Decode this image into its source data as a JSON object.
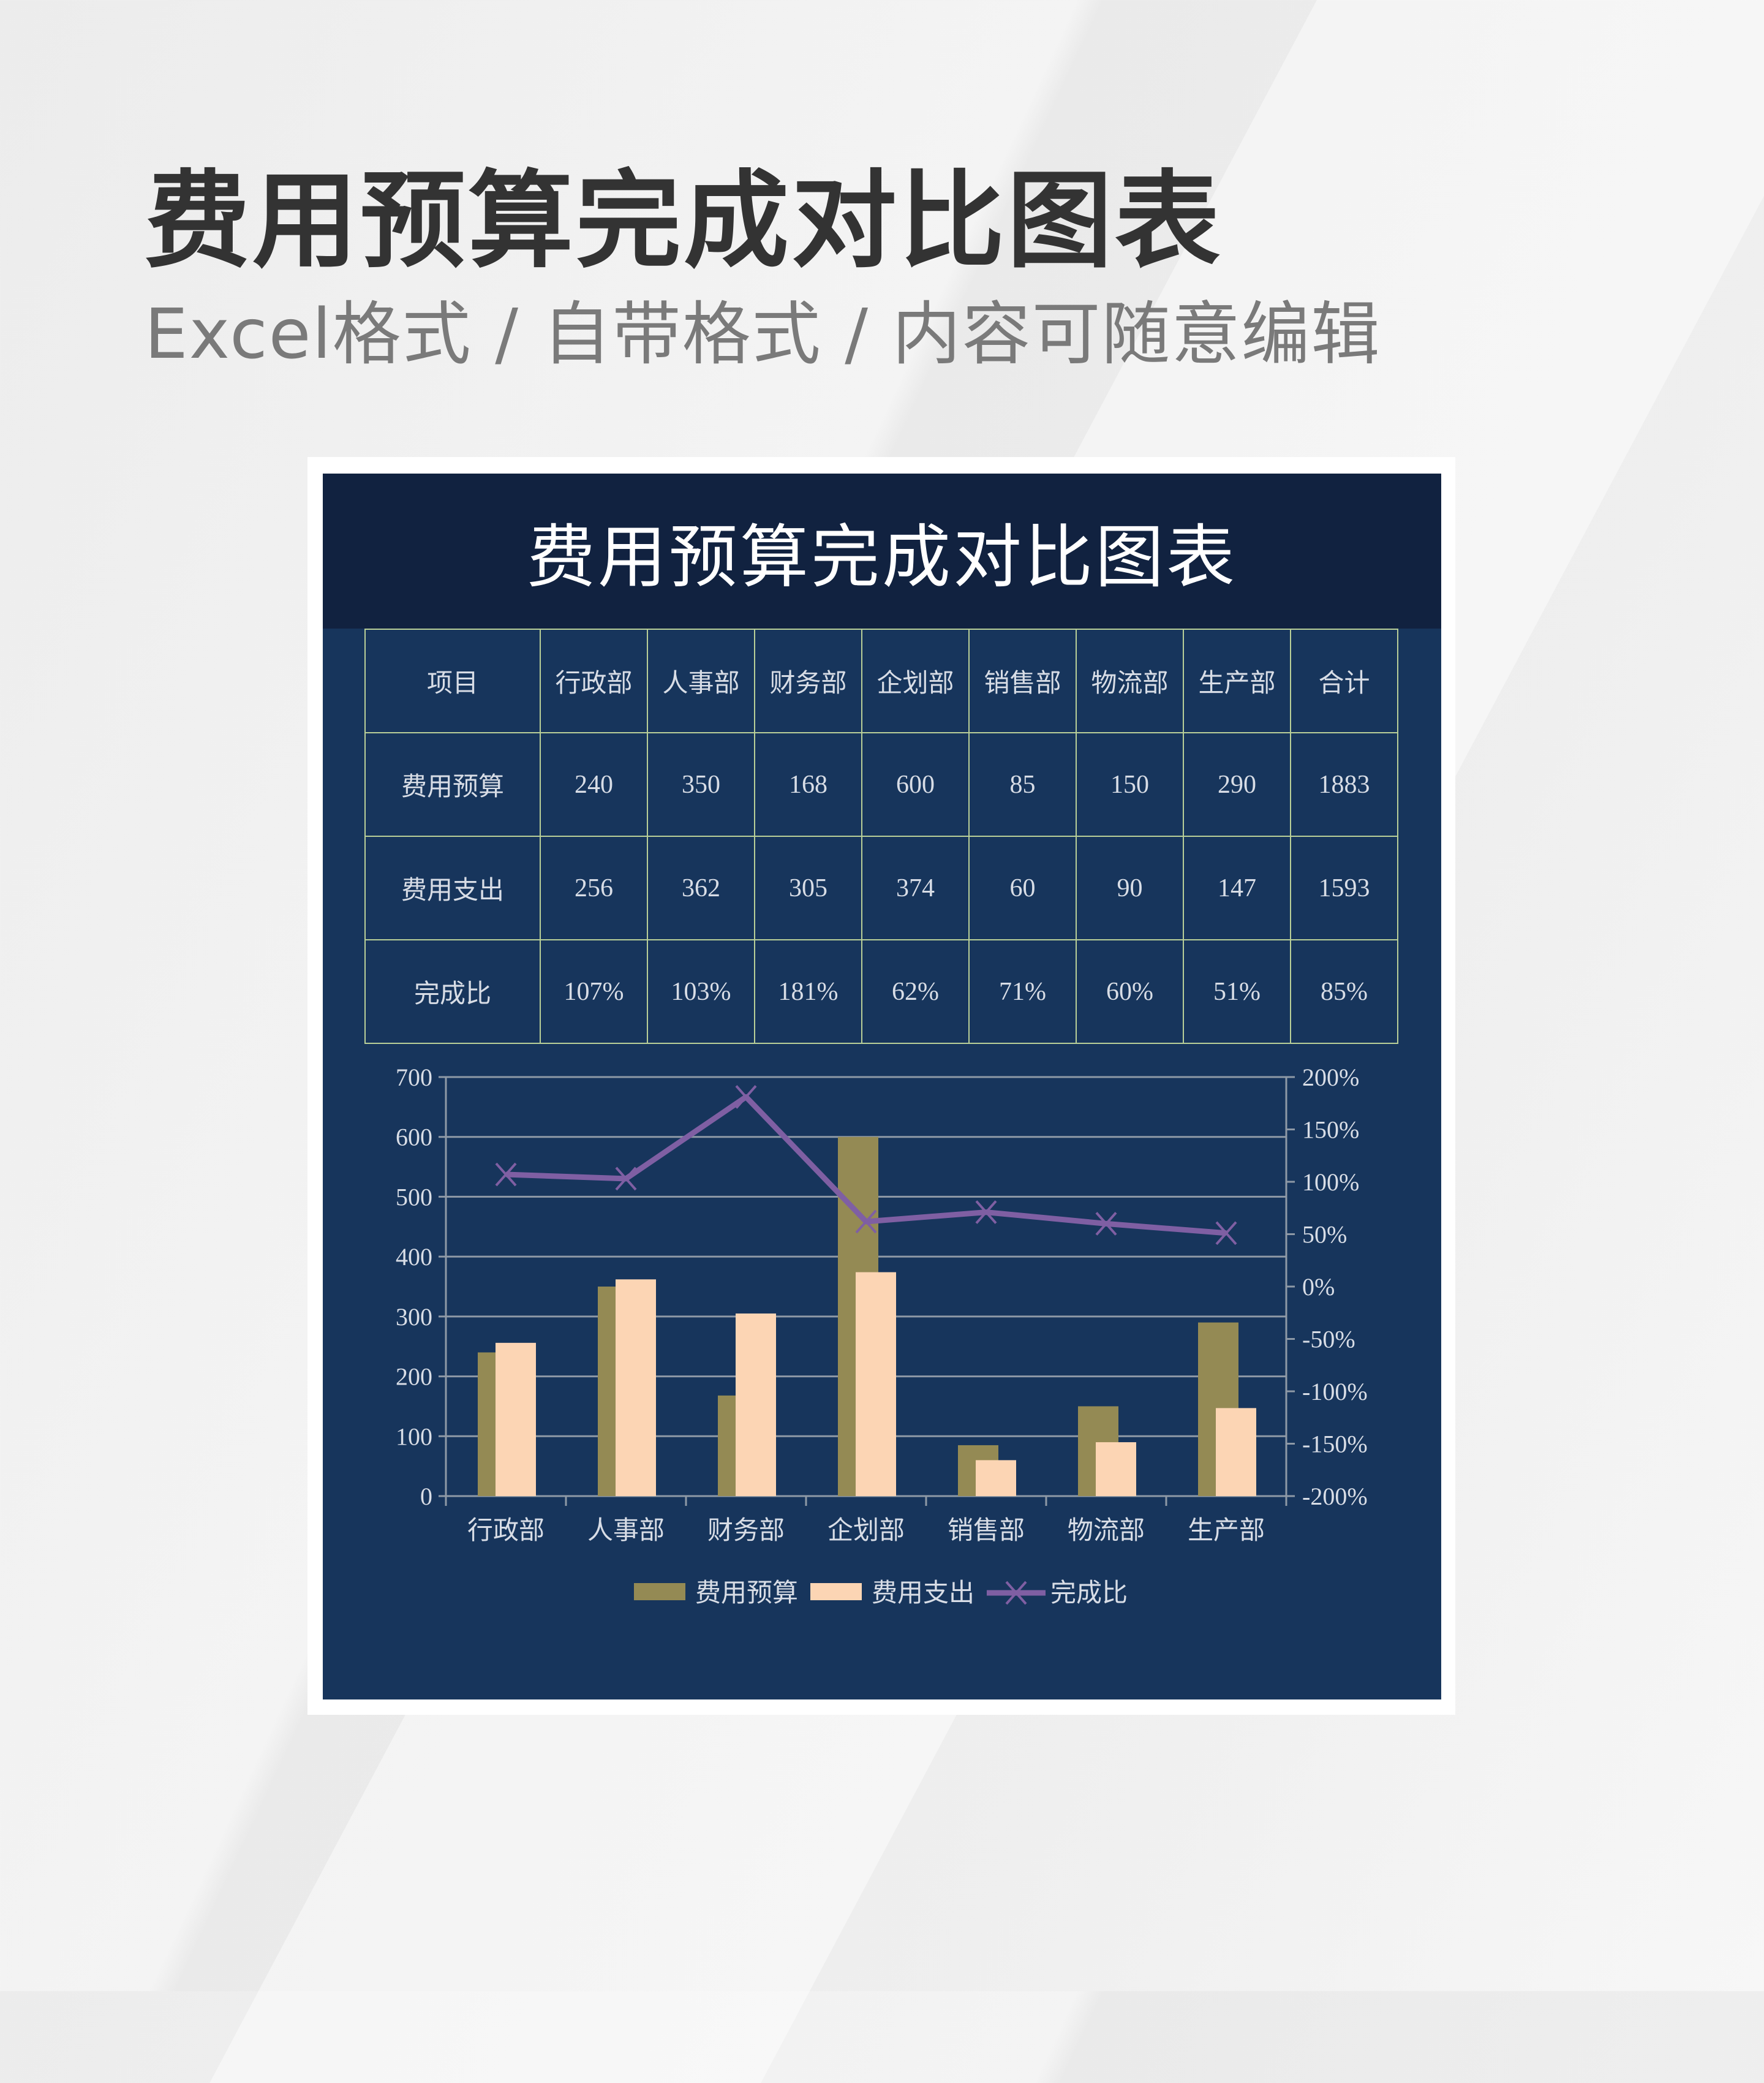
{
  "heading": "费用预算完成对比图表",
  "subheading": "Excel格式 / 自带格式 / 内容可随意编辑",
  "sheet_title": "费用预算完成对比图表",
  "table": {
    "header": [
      "项目",
      "行政部",
      "人事部",
      "财务部",
      "企划部",
      "销售部",
      "物流部",
      "生产部",
      "合计"
    ],
    "rows": [
      [
        "费用预算",
        "240",
        "350",
        "168",
        "600",
        "85",
        "150",
        "290",
        "1883"
      ],
      [
        "费用支出",
        "256",
        "362",
        "305",
        "374",
        "60",
        "90",
        "147",
        "1593"
      ],
      [
        "完成比",
        "107%",
        "103%",
        "181%",
        "62%",
        "71%",
        "60%",
        "51%",
        "85%"
      ]
    ]
  },
  "chart_data": {
    "type": "bar",
    "categories": [
      "行政部",
      "人事部",
      "财务部",
      "企划部",
      "销售部",
      "物流部",
      "生产部"
    ],
    "series": [
      {
        "name": "费用预算",
        "type": "bar",
        "axis": "left",
        "color": "#948a54",
        "values": [
          240,
          350,
          168,
          600,
          85,
          150,
          290
        ]
      },
      {
        "name": "费用支出",
        "type": "bar",
        "axis": "left",
        "color": "#fcd5b4",
        "values": [
          256,
          362,
          305,
          374,
          60,
          90,
          147
        ]
      },
      {
        "name": "完成比",
        "type": "line",
        "axis": "right",
        "color": "#7f5fa3",
        "marker": "x",
        "values": [
          107,
          103,
          181,
          62,
          71,
          60,
          51
        ]
      }
    ],
    "ylim": [
      0,
      700
    ],
    "yticks": [
      "0",
      "100",
      "200",
      "300",
      "400",
      "500",
      "600",
      "700"
    ],
    "y2lim": [
      -200,
      200
    ],
    "y2ticks": [
      "-200%",
      "-150%",
      "-100%",
      "-50%",
      "0%",
      "50%",
      "100%",
      "150%",
      "200%"
    ],
    "grid": true,
    "legend": "bottom"
  }
}
